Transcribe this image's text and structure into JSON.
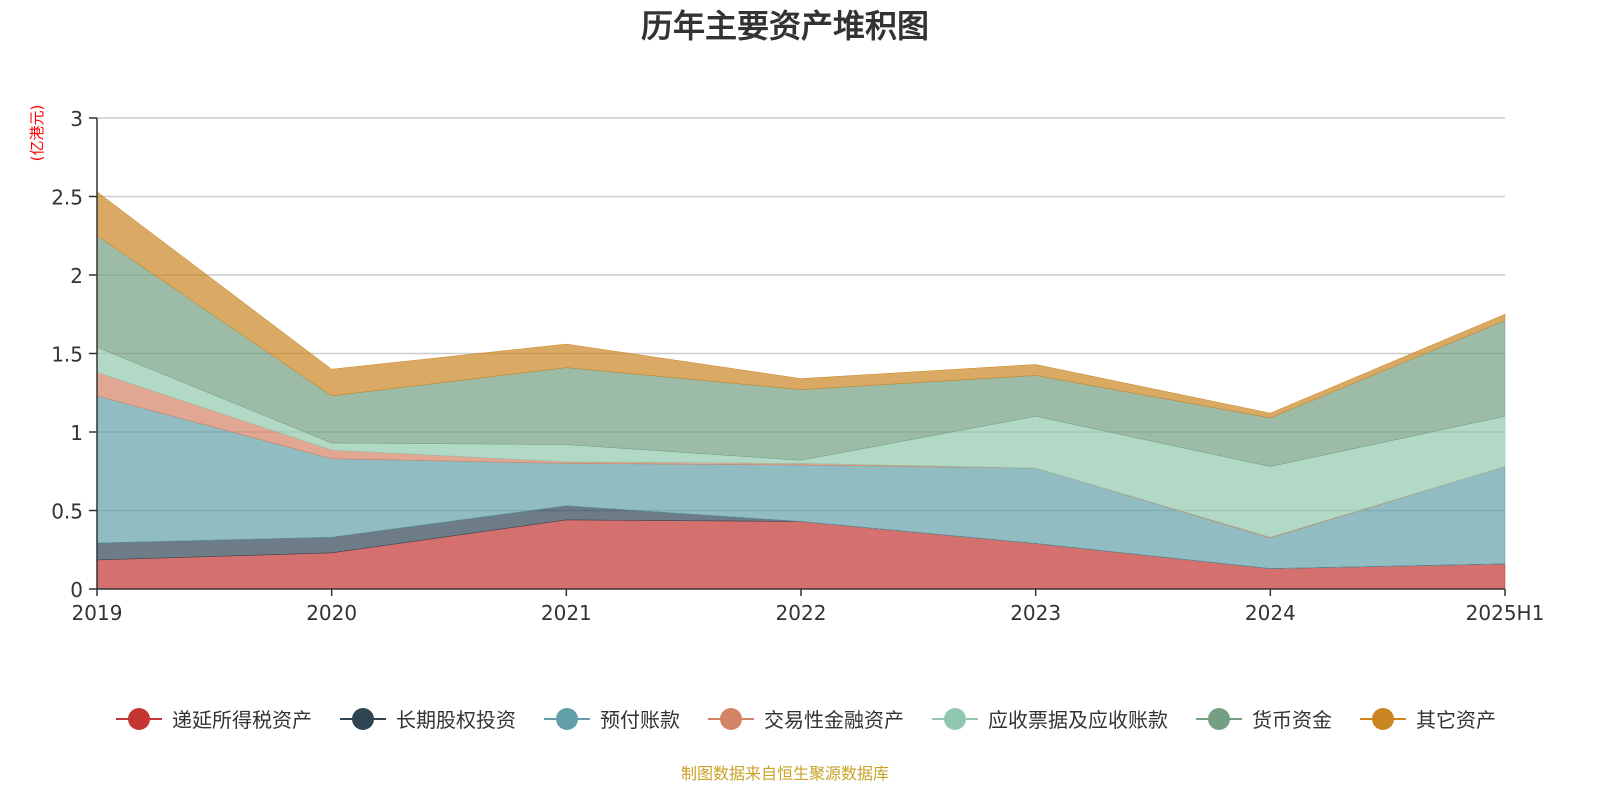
{
  "chart_data": {
    "type": "area",
    "stacked": true,
    "title": "历年主要资产堆积图",
    "ylabel": "(亿港元)",
    "xlabel": "",
    "ylim": [
      0,
      3
    ],
    "yticks": [
      "0",
      "0.5",
      "1",
      "1.5",
      "2",
      "2.5",
      "3"
    ],
    "grid": true,
    "legend_position": "bottom",
    "categories": [
      "2019",
      "2020",
      "2021",
      "2022",
      "2023",
      "2024",
      "2025H1"
    ],
    "series": [
      {
        "name": "递延所得税资产",
        "color": "#c23531",
        "values": [
          0.185,
          0.23,
          0.44,
          0.43,
          0.29,
          0.13,
          0.16
        ]
      },
      {
        "name": "长期股权投资",
        "color": "#2f4554",
        "values": [
          0.108,
          0.1,
          0.09,
          0,
          0,
          0,
          0
        ]
      },
      {
        "name": "预付账款",
        "color": "#61a0a8",
        "values": [
          0.937,
          0.5,
          0.27,
          0.36,
          0.48,
          0.195,
          0.62
        ]
      },
      {
        "name": "交易性金融资产",
        "color": "#d48265",
        "values": [
          0.15,
          0.055,
          0.01,
          0.01,
          0,
          0.005,
          0
        ]
      },
      {
        "name": "应收票据及应收账款",
        "color": "#91c7ae",
        "values": [
          0.16,
          0.045,
          0.11,
          0.02,
          0.33,
          0.45,
          0.32
        ]
      },
      {
        "name": "货币资金",
        "color": "#749f83",
        "values": [
          0.71,
          0.3,
          0.49,
          0.45,
          0.26,
          0.31,
          0.61
        ]
      },
      {
        "name": "其它资产",
        "color": "#ca8622",
        "values": [
          0.28,
          0.17,
          0.15,
          0.07,
          0.07,
          0.03,
          0.04
        ]
      }
    ]
  },
  "source_note": "制图数据来自恒生聚源数据库"
}
